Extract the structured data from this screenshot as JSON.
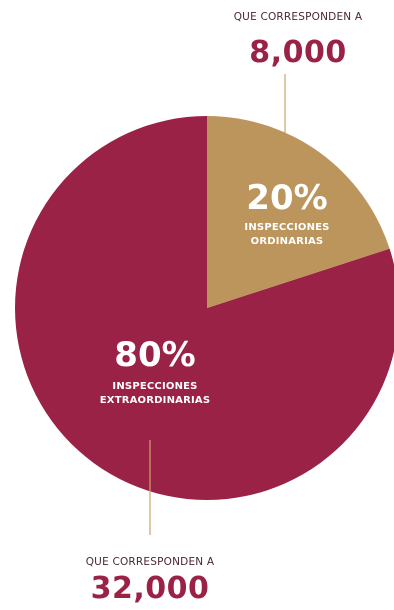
{
  "chart_data": {
    "type": "pie",
    "title": "",
    "slices": [
      {
        "percent_label": "20%",
        "name_lines": [
          "INSPECCIONES",
          "ORDINARIAS"
        ],
        "value": 20,
        "color": "#bc955c",
        "caption": "QUE CORRESPONDEN A",
        "amount": "8,000"
      },
      {
        "percent_label": "80%",
        "name_lines": [
          "INSPECCIONES",
          "EXTRAORDINARIAS"
        ],
        "value": 80,
        "color": "#9b2247",
        "caption": "QUE CORRESPONDEN A",
        "amount": "32,000"
      }
    ],
    "leader_color": "#c9a56a"
  }
}
